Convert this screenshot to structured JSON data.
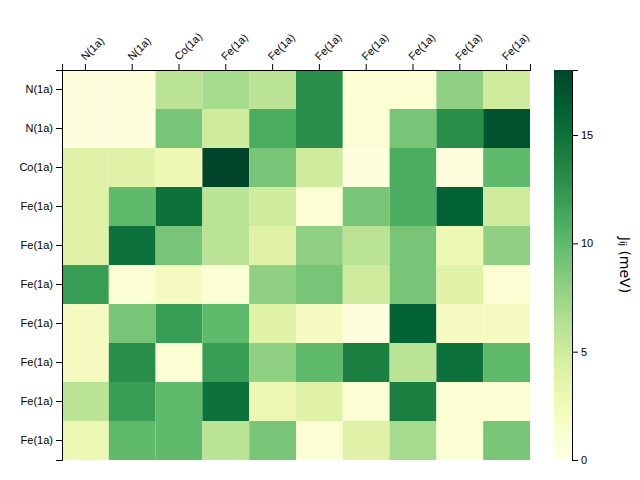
{
  "chart_data": {
    "type": "heatmap",
    "categories": [
      "N(1a)",
      "N(1a)",
      "Co(1a)",
      "Fe(1a)",
      "Fe(1a)",
      "Fe(1a)",
      "Fe(1a)",
      "Fe(1a)",
      "Fe(1a)",
      "Fe(1a)"
    ],
    "values": [
      [
        0.5,
        0.5,
        6.0,
        7.0,
        6.0,
        13.0,
        1.0,
        1.0,
        8.0,
        5.0
      ],
      [
        0.5,
        0.5,
        9.0,
        5.0,
        11.0,
        13.0,
        1.0,
        9.0,
        13.0,
        17.0
      ],
      [
        4.0,
        4.0,
        3.0,
        18.0,
        9.0,
        5.0,
        0.5,
        11.0,
        0.5,
        10.0
      ],
      [
        4.0,
        10.0,
        15.0,
        6.0,
        5.0,
        1.0,
        9.0,
        11.0,
        16.0,
        5.0
      ],
      [
        4.0,
        15.0,
        9.0,
        6.0,
        4.0,
        8.0,
        6.0,
        9.0,
        3.0,
        8.0
      ],
      [
        12.0,
        1.0,
        2.0,
        1.0,
        8.0,
        9.0,
        5.0,
        9.0,
        4.0,
        1.0
      ],
      [
        2.0,
        9.0,
        12.0,
        10.0,
        4.0,
        2.0,
        0.5,
        16.0,
        2.0,
        2.0
      ],
      [
        2.0,
        13.0,
        1.0,
        12.0,
        8.0,
        10.0,
        14.0,
        6.0,
        15.0,
        10.0
      ],
      [
        6.0,
        12.0,
        10.0,
        15.0,
        3.0,
        4.0,
        1.0,
        14.0,
        1.0,
        1.0
      ],
      [
        3.0,
        10.0,
        10.0,
        6.0,
        9.0,
        1.0,
        4.0,
        7.0,
        1.0,
        9.0
      ]
    ],
    "color": "YlGn",
    "colorbar_label": "Jᵢⱼ (meV)",
    "colorbar_range": [
      0,
      18
    ],
    "colorbar_ticks": [
      0,
      5,
      10,
      15
    ]
  }
}
